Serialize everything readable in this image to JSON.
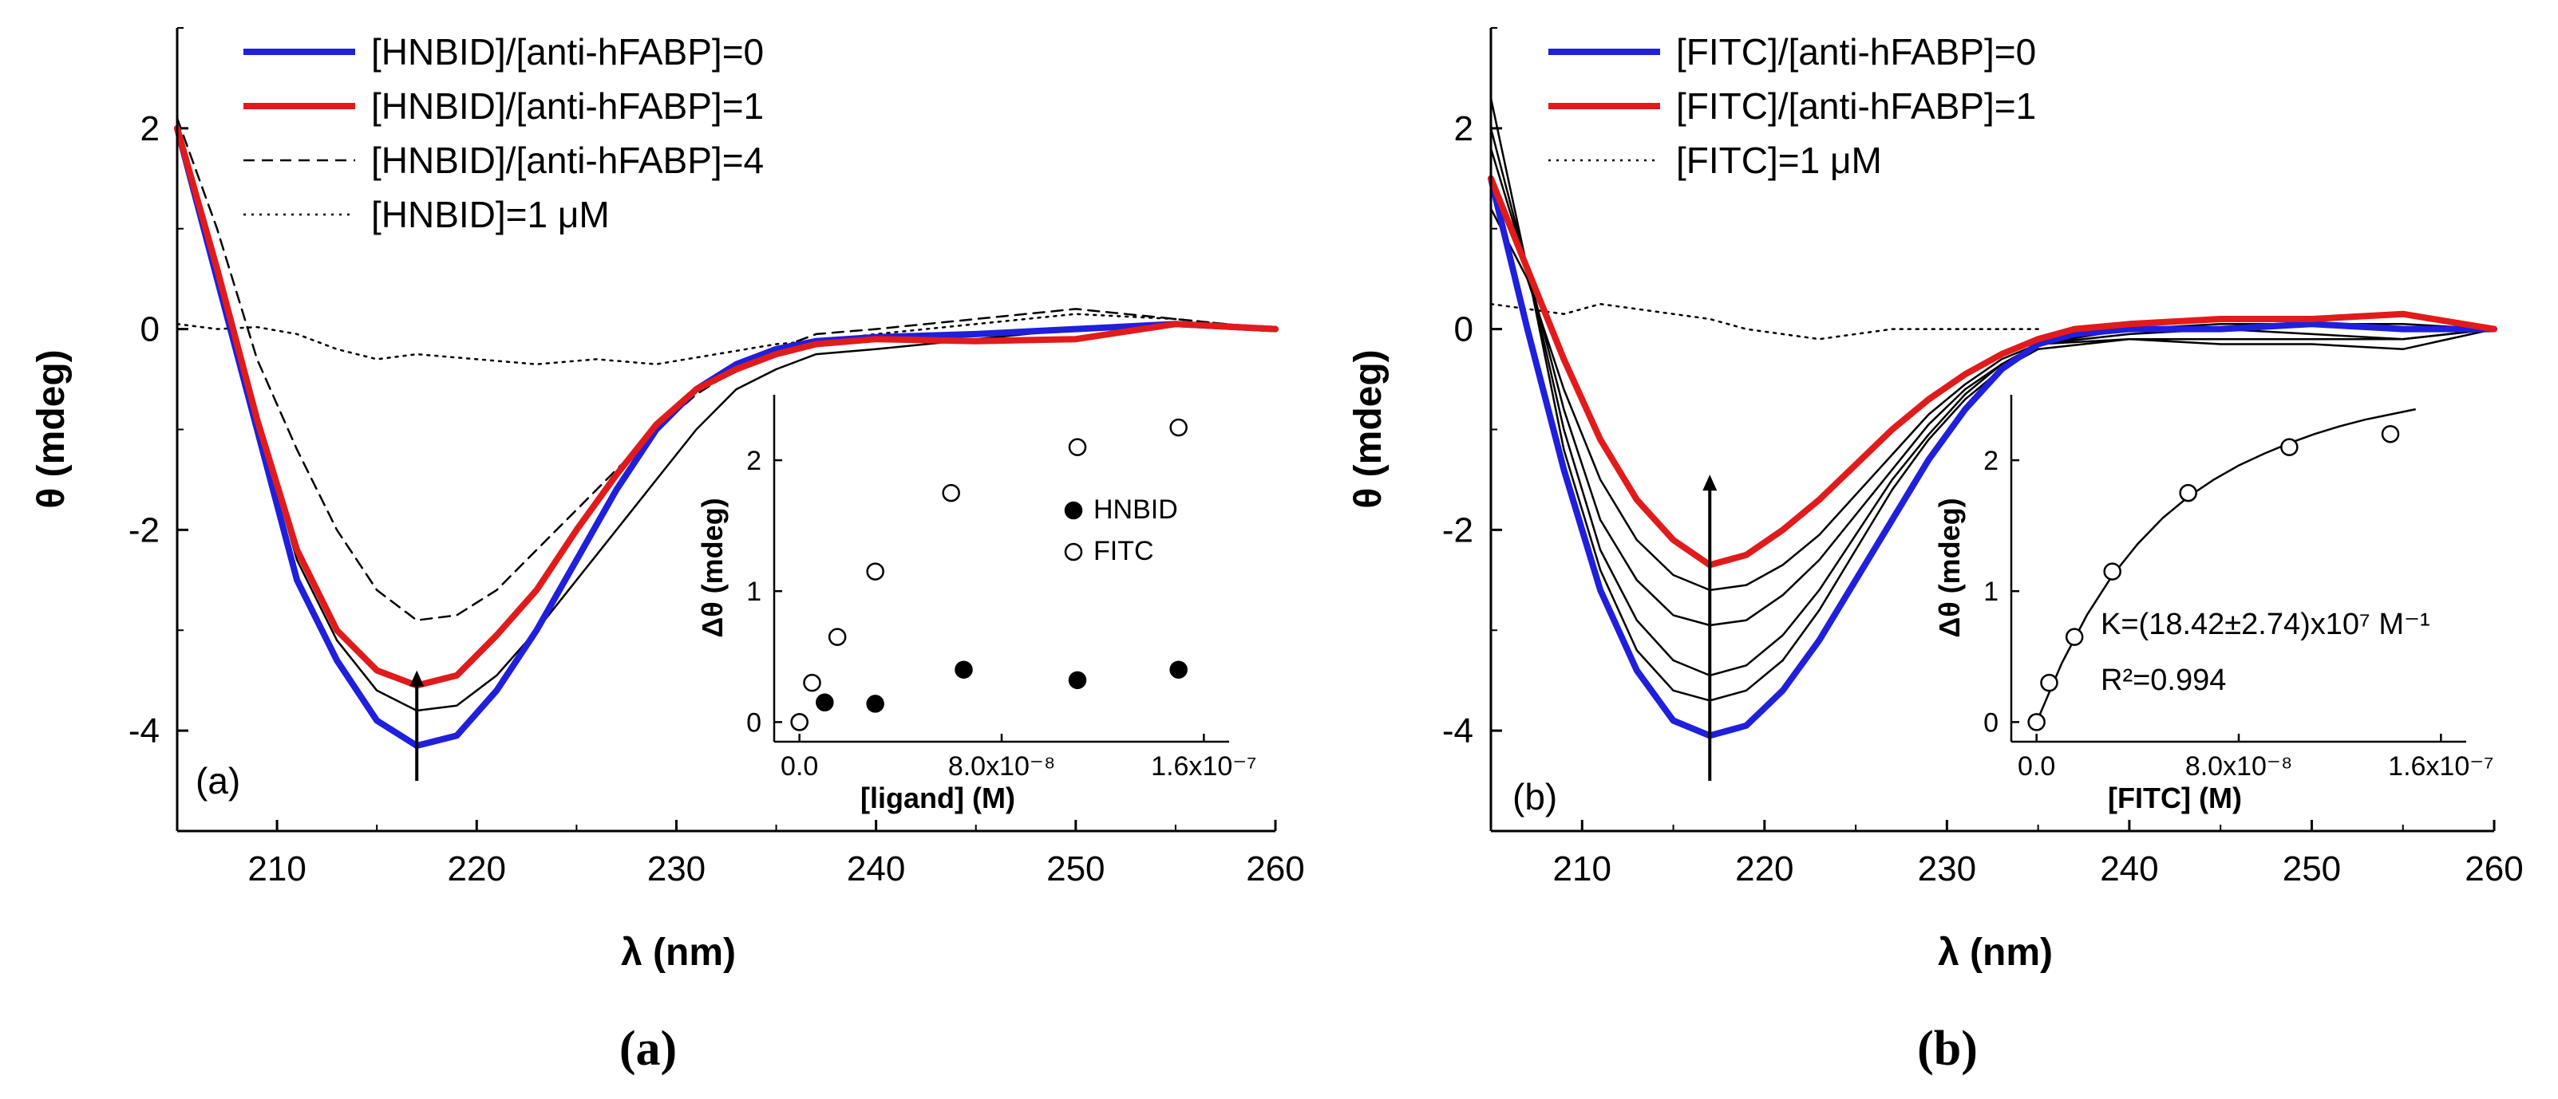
{
  "chart_data": [
    {
      "type": "line",
      "panel": "a",
      "xlabel": "λ (nm)",
      "ylabel": "θ (mdeg)",
      "xlim": [
        205,
        260
      ],
      "ylim": [
        -5,
        3
      ],
      "xticks": [
        210,
        220,
        230,
        240,
        250,
        260
      ],
      "yticks": [
        -4,
        -2,
        0,
        2
      ],
      "xtick_labels": [
        "210",
        "220",
        "230",
        "240",
        "250",
        "260"
      ],
      "ytick_labels": [
        "-4",
        "-2",
        "0",
        "2"
      ],
      "panel_label": "(a)",
      "caption": "(a)",
      "legend": [
        {
          "label": "[HNBID]/[anti-hFABP]=0",
          "color": "#1f1fdc",
          "style": "thick"
        },
        {
          "label": "[HNBID]/[anti-hFABP]=1",
          "color": "#e11b1b",
          "style": "thick"
        },
        {
          "label": "[HNBID]/[anti-hFABP]=4",
          "color": "#000000",
          "style": "dashed"
        },
        {
          "label": "[HNBID]=1 μM",
          "color": "#000000",
          "style": "dotted"
        }
      ],
      "series": [
        {
          "name": "[HNBID]/[anti-hFABP]=0",
          "color": "#1f1fdc",
          "style": "thick",
          "x": [
            205,
            207,
            209,
            211,
            213,
            215,
            217,
            219,
            221,
            223,
            225,
            227,
            229,
            231,
            233,
            235,
            237,
            240,
            245,
            250,
            255,
            260
          ],
          "y": [
            2.0,
            0.5,
            -1.0,
            -2.5,
            -3.3,
            -3.9,
            -4.15,
            -4.05,
            -3.6,
            -3.0,
            -2.3,
            -1.6,
            -1.0,
            -0.6,
            -0.35,
            -0.2,
            -0.12,
            -0.08,
            -0.05,
            0.0,
            0.05,
            0.0
          ]
        },
        {
          "name": "[HNBID]/[anti-hFABP]=1",
          "color": "#e11b1b",
          "style": "thick",
          "x": [
            205,
            207,
            209,
            211,
            213,
            215,
            217,
            219,
            221,
            223,
            225,
            227,
            229,
            231,
            233,
            235,
            237,
            240,
            245,
            250,
            255,
            260
          ],
          "y": [
            2.0,
            0.6,
            -0.9,
            -2.2,
            -3.0,
            -3.4,
            -3.55,
            -3.45,
            -3.05,
            -2.6,
            -2.0,
            -1.45,
            -0.95,
            -0.6,
            -0.4,
            -0.25,
            -0.15,
            -0.1,
            -0.12,
            -0.1,
            0.05,
            0.0
          ]
        },
        {
          "name": "[HNBID]/[anti-hFABP]=4",
          "color": "#000000",
          "style": "dashed",
          "x": [
            205,
            207,
            209,
            211,
            213,
            215,
            217,
            219,
            221,
            223,
            225,
            227,
            229,
            231,
            233,
            235,
            237,
            240,
            245,
            250,
            255,
            260
          ],
          "y": [
            2.1,
            1.0,
            -0.3,
            -1.2,
            -2.0,
            -2.6,
            -2.9,
            -2.85,
            -2.6,
            -2.2,
            -1.8,
            -1.4,
            -1.0,
            -0.65,
            -0.4,
            -0.2,
            -0.05,
            0.0,
            0.1,
            0.2,
            0.1,
            0.0
          ]
        },
        {
          "name": "[HNBID]=1 μM",
          "color": "#000000",
          "style": "dotted",
          "x": [
            205,
            207,
            209,
            211,
            213,
            215,
            217,
            220,
            223,
            226,
            229,
            232,
            235,
            238,
            240,
            245,
            250,
            255,
            260
          ],
          "y": [
            0.05,
            0.0,
            0.02,
            -0.05,
            -0.2,
            -0.3,
            -0.25,
            -0.3,
            -0.35,
            -0.3,
            -0.35,
            -0.25,
            -0.15,
            -0.1,
            -0.05,
            0.05,
            0.15,
            0.1,
            0.0
          ]
        },
        {
          "name": "intermediate",
          "color": "#000000",
          "style": "thin",
          "x": [
            205,
            207,
            209,
            211,
            213,
            215,
            217,
            219,
            221,
            223,
            225,
            227,
            229,
            231,
            233,
            235,
            237,
            240,
            245,
            250,
            255,
            260
          ],
          "y": [
            2.0,
            0.6,
            -0.9,
            -2.3,
            -3.1,
            -3.6,
            -3.8,
            -3.75,
            -3.45,
            -3.0,
            -2.5,
            -2.0,
            -1.5,
            -1.0,
            -0.6,
            -0.4,
            -0.25,
            -0.2,
            -0.1,
            0.0,
            0.05,
            0.0
          ]
        }
      ],
      "arrow": {
        "x": 217,
        "y_from": -4.5,
        "y_to": -3.4
      },
      "inset": {
        "xlabel": "[ligand] (M)",
        "ylabel": "Δθ (mdeg)",
        "xlim": [
          -1e-08,
          1.7e-07
        ],
        "ylim": [
          -0.15,
          2.5
        ],
        "xticks": [
          0,
          8e-08,
          1.6e-07
        ],
        "xtick_labels": [
          "0.0",
          "8.0x10⁻⁸",
          "1.6x10⁻⁷"
        ],
        "yticks": [
          0,
          1,
          2
        ],
        "ytick_labels": [
          "0",
          "1",
          "2"
        ],
        "legend": [
          {
            "label": "HNBID",
            "marker": "filled-circle"
          },
          {
            "label": "FITC",
            "marker": "open-circle"
          }
        ],
        "series": [
          {
            "name": "HNBID",
            "marker": "filled-circle",
            "x": [
              0,
              1e-08,
              3e-08,
              6.5e-08,
              1.1e-07,
              1.5e-07
            ],
            "y": [
              0.0,
              0.15,
              0.14,
              0.4,
              0.32,
              0.4
            ]
          },
          {
            "name": "FITC",
            "marker": "open-circle",
            "x": [
              0,
              5e-09,
              1.5e-08,
              3e-08,
              6e-08,
              1.1e-07,
              1.5e-07
            ],
            "y": [
              0.0,
              0.3,
              0.65,
              1.15,
              1.75,
              2.1,
              2.25
            ]
          }
        ]
      }
    },
    {
      "type": "line",
      "panel": "b",
      "xlabel": "λ (nm)",
      "ylabel": "θ (mdeg)",
      "xlim": [
        205,
        260
      ],
      "ylim": [
        -5,
        3
      ],
      "xticks": [
        210,
        220,
        230,
        240,
        250,
        260
      ],
      "yticks": [
        -4,
        -2,
        0,
        2
      ],
      "xtick_labels": [
        "210",
        "220",
        "230",
        "240",
        "250",
        "260"
      ],
      "ytick_labels": [
        "-4",
        "-2",
        "0",
        "2"
      ],
      "panel_label": "(b)",
      "caption": "(b)",
      "legend": [
        {
          "label": "[FITC]/[anti-hFABP]=0",
          "color": "#1f1fdc",
          "style": "thick"
        },
        {
          "label": "[FITC]/[anti-hFABP]=1",
          "color": "#e11b1b",
          "style": "thick"
        },
        {
          "label": "[FITC]=1 μM",
          "color": "#000000",
          "style": "dotted"
        }
      ],
      "series": [
        {
          "name": "[FITC]/[anti-hFABP]=0",
          "color": "#1f1fdc",
          "style": "thick",
          "x": [
            205,
            207,
            209,
            211,
            213,
            215,
            217,
            219,
            221,
            223,
            225,
            227,
            229,
            231,
            233,
            235,
            237,
            240,
            245,
            250,
            255,
            260
          ],
          "y": [
            1.5,
            0.0,
            -1.4,
            -2.6,
            -3.4,
            -3.9,
            -4.05,
            -3.95,
            -3.6,
            -3.1,
            -2.5,
            -1.9,
            -1.3,
            -0.8,
            -0.4,
            -0.15,
            -0.05,
            0.0,
            0.0,
            0.05,
            0.0,
            0.0
          ]
        },
        {
          "name": "[FITC]/[anti-hFABP]=1",
          "color": "#e11b1b",
          "style": "thick",
          "x": [
            205,
            207,
            209,
            211,
            213,
            215,
            217,
            219,
            221,
            223,
            225,
            227,
            229,
            231,
            233,
            235,
            237,
            240,
            245,
            250,
            255,
            260
          ],
          "y": [
            1.5,
            0.6,
            -0.3,
            -1.1,
            -1.7,
            -2.1,
            -2.35,
            -2.25,
            -2.0,
            -1.7,
            -1.35,
            -1.0,
            -0.7,
            -0.45,
            -0.25,
            -0.1,
            0.0,
            0.05,
            0.1,
            0.1,
            0.15,
            0.0
          ]
        },
        {
          "name": "[FITC]=1 μM",
          "color": "#000000",
          "style": "dotted",
          "x": [
            205,
            207,
            209,
            211,
            213,
            215,
            217,
            219,
            221,
            223,
            225,
            227,
            229,
            231,
            233,
            235
          ],
          "y": [
            0.25,
            0.2,
            0.15,
            0.25,
            0.2,
            0.15,
            0.1,
            0.0,
            -0.05,
            -0.1,
            -0.05,
            0.0,
            0.0,
            0.0,
            0.0,
            0.0
          ]
        },
        {
          "name": "intermediate-1",
          "color": "#000000",
          "style": "thin",
          "x": [
            205,
            207,
            209,
            211,
            213,
            215,
            217,
            219,
            221,
            223,
            225,
            227,
            229,
            231,
            233,
            235,
            240,
            245,
            250,
            255,
            260
          ],
          "y": [
            2.3,
            0.6,
            -1.2,
            -2.4,
            -3.2,
            -3.6,
            -3.7,
            -3.6,
            -3.3,
            -2.8,
            -2.2,
            -1.6,
            -1.1,
            -0.7,
            -0.4,
            -0.2,
            -0.1,
            -0.1,
            -0.1,
            -0.1,
            0.0
          ]
        },
        {
          "name": "intermediate-2",
          "color": "#000000",
          "style": "thin",
          "x": [
            205,
            207,
            209,
            211,
            213,
            215,
            217,
            219,
            221,
            223,
            225,
            227,
            229,
            231,
            233,
            235,
            240,
            245,
            250,
            255,
            260
          ],
          "y": [
            2.0,
            0.6,
            -1.0,
            -2.2,
            -2.9,
            -3.3,
            -3.45,
            -3.35,
            -3.05,
            -2.6,
            -2.05,
            -1.5,
            -1.05,
            -0.65,
            -0.35,
            -0.15,
            -0.05,
            0.0,
            -0.05,
            -0.1,
            0.0
          ]
        },
        {
          "name": "intermediate-3",
          "color": "#000000",
          "style": "thin",
          "x": [
            205,
            207,
            209,
            211,
            213,
            215,
            217,
            219,
            221,
            223,
            225,
            227,
            229,
            231,
            233,
            235,
            240,
            245,
            250,
            255,
            260
          ],
          "y": [
            1.8,
            0.6,
            -0.8,
            -1.9,
            -2.5,
            -2.85,
            -2.95,
            -2.9,
            -2.65,
            -2.3,
            -1.85,
            -1.4,
            -0.95,
            -0.6,
            -0.35,
            -0.15,
            0.0,
            0.05,
            0.05,
            0.05,
            0.0
          ]
        },
        {
          "name": "intermediate-4",
          "color": "#000000",
          "style": "thin",
          "x": [
            205,
            207,
            209,
            211,
            213,
            215,
            217,
            219,
            221,
            223,
            225,
            227,
            229,
            231,
            233,
            235,
            240,
            245,
            250,
            255,
            260
          ],
          "y": [
            1.2,
            0.5,
            -0.6,
            -1.5,
            -2.1,
            -2.45,
            -2.6,
            -2.55,
            -2.35,
            -2.05,
            -1.65,
            -1.25,
            -0.85,
            -0.55,
            -0.3,
            -0.15,
            -0.1,
            -0.15,
            -0.15,
            -0.2,
            0.0
          ]
        }
      ],
      "arrow": {
        "x": 217,
        "y_from": -4.5,
        "y_to": -1.45
      },
      "inset": {
        "xlabel": "[FITC] (M)",
        "ylabel": "Δθ (mdeg)",
        "xlim": [
          -1e-08,
          1.7e-07
        ],
        "ylim": [
          -0.15,
          2.5
        ],
        "xticks": [
          0,
          8e-08,
          1.6e-07
        ],
        "xtick_labels": [
          "0.0",
          "8.0x10⁻⁸",
          "1.6x10⁻⁷"
        ],
        "yticks": [
          0,
          1,
          2
        ],
        "ytick_labels": [
          "0",
          "1",
          "2"
        ],
        "series": [
          {
            "name": "FITC",
            "marker": "open-circle",
            "x": [
              0,
              5e-09,
              1.5e-08,
              3e-08,
              6e-08,
              1e-07,
              1.4e-07
            ],
            "y": [
              0.0,
              0.3,
              0.65,
              1.15,
              1.75,
              2.1,
              2.2
            ]
          }
        ],
        "fit": {
          "x": [
            0,
            1e-08,
            2e-08,
            3e-08,
            4e-08,
            5e-08,
            6e-08,
            7e-08,
            8e-08,
            9e-08,
            1e-07,
            1.1e-07,
            1.2e-07,
            1.3e-07,
            1.4e-07,
            1.5e-07
          ],
          "y": [
            0.0,
            0.45,
            0.82,
            1.12,
            1.36,
            1.56,
            1.72,
            1.85,
            1.96,
            2.05,
            2.13,
            2.2,
            2.26,
            2.31,
            2.35,
            2.39
          ]
        },
        "annotation": {
          "k_label": "K=(18.42±2.74)x10⁷ M⁻¹",
          "r2_label": "R²=0.994"
        }
      }
    }
  ]
}
